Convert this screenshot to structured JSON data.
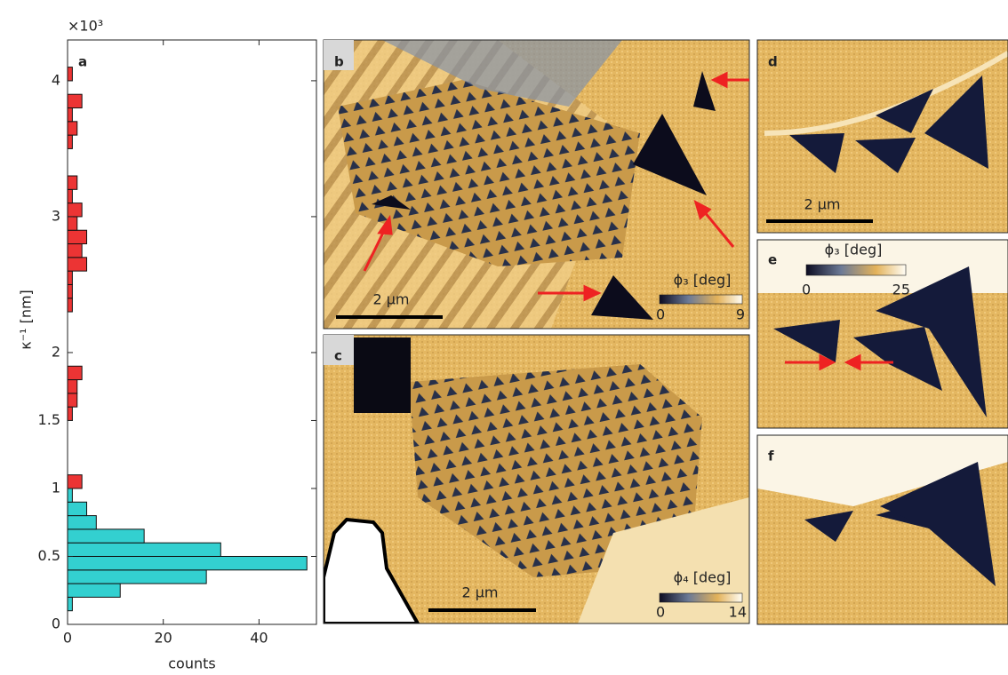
{
  "chart_data": {
    "type": "histogram",
    "orientation": "horizontal",
    "panel_label": "a",
    "exponent_label": "×10³",
    "xlabel": "counts",
    "ylabel": "κ⁻¹ [nm]",
    "xlim": [
      0,
      52
    ],
    "xticks": [
      0,
      20,
      40
    ],
    "ylim": [
      0,
      4.3
    ],
    "yticks": [
      0,
      0.5,
      1,
      1.5,
      2,
      3,
      4
    ],
    "series": [
      {
        "color": "#33d0d0",
        "bins": [
          0.1,
          0.2,
          0.3,
          0.4,
          0.5,
          0.6,
          0.7,
          0.8,
          0.9,
          1.0
        ],
        "values": [
          1,
          11,
          29,
          50,
          32,
          16,
          6,
          4,
          1
        ]
      },
      {
        "color": "#ec3434",
        "bins": [
          1.0,
          1.1,
          1.2,
          1.3,
          1.4,
          1.5,
          1.6,
          1.7,
          1.8,
          1.9,
          2.0,
          2.1,
          2.2,
          2.3,
          2.4,
          2.5,
          2.6,
          2.7,
          2.8,
          2.9,
          3.0,
          3.1,
          3.2,
          3.3,
          3.4,
          3.5,
          3.6,
          3.7,
          3.8,
          3.9,
          4.0,
          4.1
        ],
        "values": [
          3,
          0,
          0,
          0,
          0,
          1,
          2,
          2,
          3,
          0,
          0,
          0,
          0,
          1,
          1,
          1,
          4,
          3,
          4,
          2,
          3,
          1,
          2,
          0,
          0,
          1,
          2,
          1,
          3,
          0,
          1
        ]
      }
    ]
  },
  "panels": {
    "b": {
      "label": "b",
      "scale_bar": "2 μm",
      "colorbar_label": "ϕ₃ [deg]",
      "colorbar_min": "0",
      "colorbar_max": "9"
    },
    "c": {
      "label": "c",
      "scale_bar": "2 μm",
      "colorbar_label": "ϕ₄ [deg]",
      "colorbar_min": "0",
      "colorbar_max": "14"
    },
    "d": {
      "label": "d",
      "scale_bar": "2 μm"
    },
    "e": {
      "label": "e",
      "colorbar_label": "ϕ₃ [deg]",
      "colorbar_min": "0",
      "colorbar_max": "25"
    },
    "f": {
      "label": "f"
    }
  }
}
